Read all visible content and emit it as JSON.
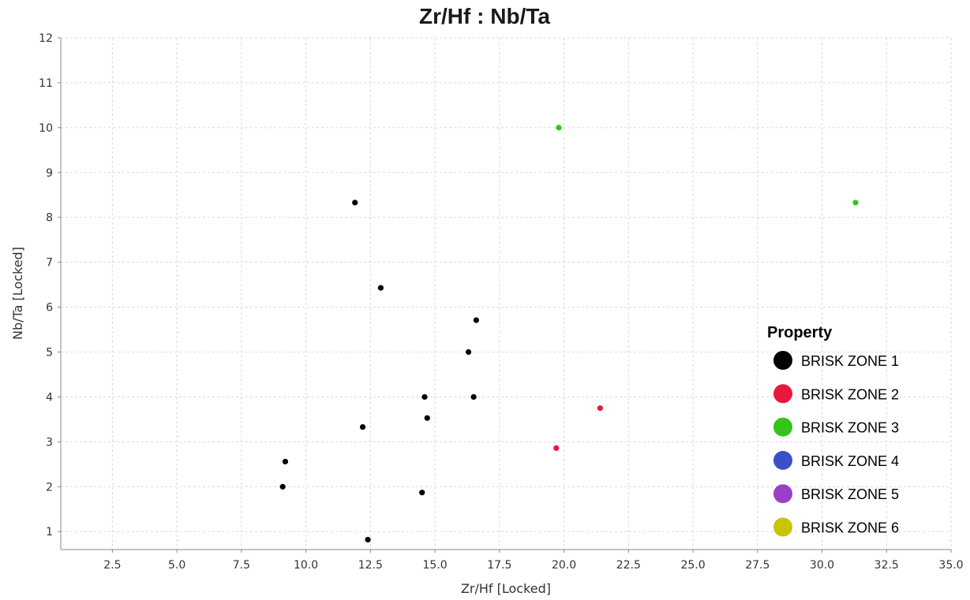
{
  "chart_data": {
    "type": "scatter",
    "title": "Zr/Hf : Nb/Ta",
    "xlabel": "Zr/Hf [Locked]",
    "ylabel": "Nb/Ta [Locked]",
    "xlim": [
      0.5,
      35.0
    ],
    "ylim": [
      0.6,
      12
    ],
    "x_ticks": [
      2.5,
      5.0,
      7.5,
      10.0,
      12.5,
      15.0,
      17.5,
      20.0,
      22.5,
      25.0,
      27.5,
      30.0,
      32.5,
      35.0
    ],
    "x_tick_labels": [
      "2.5",
      "5.0",
      "7.5",
      "10.0",
      "12.5",
      "15.0",
      "17.5",
      "20.0",
      "22.5",
      "25.0",
      "27.5",
      "30.0",
      "32.5",
      "35.0"
    ],
    "y_ticks": [
      1,
      2,
      3,
      4,
      5,
      6,
      7,
      8,
      9,
      10,
      11,
      12
    ],
    "y_tick_labels": [
      "1",
      "2",
      "3",
      "4",
      "5",
      "6",
      "7",
      "8",
      "9",
      "10",
      "11",
      "12"
    ],
    "grid": true,
    "legend_placement": "bottom-right",
    "legend_title": "Property",
    "series": [
      {
        "name": "BRISK ZONE 1",
        "color": "#000000",
        "points": [
          [
            11.9,
            8.33
          ],
          [
            12.9,
            6.43
          ],
          [
            16.6,
            5.71
          ],
          [
            16.3,
            5.0
          ],
          [
            14.6,
            4.0
          ],
          [
            16.5,
            4.0
          ],
          [
            14.7,
            3.53
          ],
          [
            12.2,
            3.33
          ],
          [
            9.2,
            2.56
          ],
          [
            9.1,
            2.0
          ],
          [
            14.5,
            1.87
          ],
          [
            12.4,
            0.82
          ]
        ]
      },
      {
        "name": "BRISK ZONE 2",
        "color": "#e8173c",
        "points": [
          [
            21.4,
            3.75
          ],
          [
            19.7,
            2.86
          ]
        ]
      },
      {
        "name": "BRISK ZONE 3",
        "color": "#33c41c",
        "points": [
          [
            19.8,
            10.0
          ],
          [
            31.3,
            8.33
          ]
        ]
      },
      {
        "name": "BRISK ZONE 4",
        "color": "#3b50c8",
        "points": []
      },
      {
        "name": "BRISK ZONE 5",
        "color": "#9a3fc6",
        "points": []
      },
      {
        "name": "BRISK ZONE 6",
        "color": "#c9c400",
        "points": []
      }
    ]
  }
}
